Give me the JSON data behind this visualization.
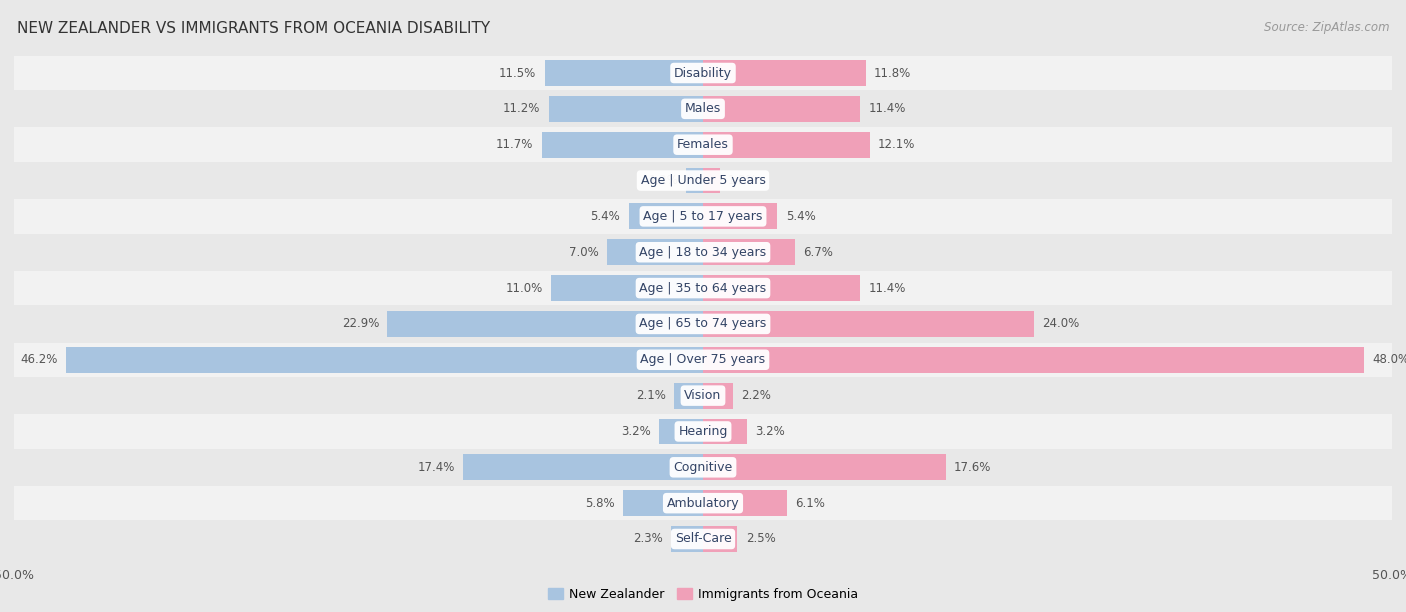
{
  "title": "NEW ZEALANDER VS IMMIGRANTS FROM OCEANIA DISABILITY",
  "source": "Source: ZipAtlas.com",
  "categories": [
    "Disability",
    "Males",
    "Females",
    "Age | Under 5 years",
    "Age | 5 to 17 years",
    "Age | 18 to 34 years",
    "Age | 35 to 64 years",
    "Age | 65 to 74 years",
    "Age | Over 75 years",
    "Vision",
    "Hearing",
    "Cognitive",
    "Ambulatory",
    "Self-Care"
  ],
  "new_zealander": [
    11.5,
    11.2,
    11.7,
    1.2,
    5.4,
    7.0,
    11.0,
    22.9,
    46.2,
    2.1,
    3.2,
    17.4,
    5.8,
    2.3
  ],
  "immigrants": [
    11.8,
    11.4,
    12.1,
    1.2,
    5.4,
    6.7,
    11.4,
    24.0,
    48.0,
    2.2,
    3.2,
    17.6,
    6.1,
    2.5
  ],
  "nz_color": "#a8c4e0",
  "imm_color": "#f0a0b8",
  "nz_label": "New Zealander",
  "imm_label": "Immigrants from Oceania",
  "axis_limit": 50.0,
  "bg_color": "#e8e8e8",
  "row_color_even": "#f2f2f2",
  "row_color_odd": "#e8e8e8",
  "title_fontsize": 11,
  "source_fontsize": 8.5,
  "label_fontsize": 9,
  "value_fontsize": 8.5
}
